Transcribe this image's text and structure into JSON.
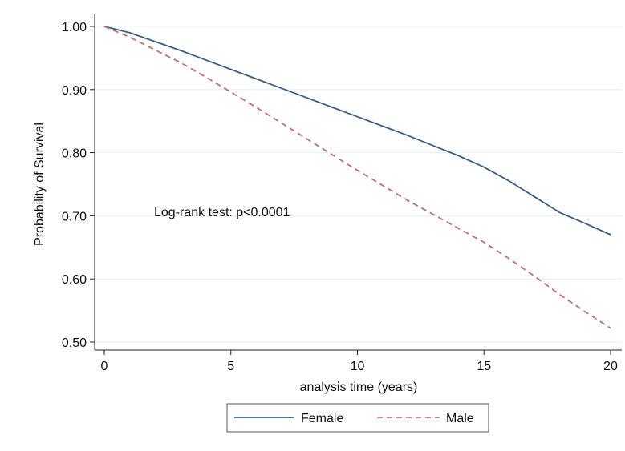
{
  "chart_data": {
    "type": "line",
    "title": "",
    "xlabel": "analysis time (years)",
    "ylabel": "Probability of Survival",
    "xlim": [
      0,
      20
    ],
    "ylim": [
      0.5,
      1.0
    ],
    "x_ticks": [
      0,
      5,
      10,
      15,
      20
    ],
    "x_tick_labels": [
      "0",
      "5",
      "10",
      "15",
      "20"
    ],
    "y_ticks": [
      0.5,
      0.6,
      0.7,
      0.8,
      0.9,
      1.0
    ],
    "y_tick_labels": [
      "0.50",
      "0.60",
      "0.70",
      "0.80",
      "0.90",
      "1.00"
    ],
    "grid": "horizontal",
    "legend_position": "bottom",
    "annotation": "Log-rank test: p<0.0001",
    "series": [
      {
        "name": "Female",
        "color": "#3a5f86",
        "style": "solid",
        "x": [
          0,
          1,
          2,
          3,
          4,
          5,
          6,
          7,
          8,
          9,
          10,
          11,
          12,
          13,
          14,
          15,
          16,
          17,
          18,
          19,
          20
        ],
        "y": [
          1.0,
          0.99,
          0.976,
          0.962,
          0.947,
          0.932,
          0.917,
          0.902,
          0.887,
          0.872,
          0.857,
          0.842,
          0.827,
          0.811,
          0.795,
          0.777,
          0.755,
          0.73,
          0.705,
          0.688,
          0.67
        ]
      },
      {
        "name": "Male",
        "color": "#c0706e",
        "style": "dashed",
        "x": [
          0,
          1,
          2,
          3,
          4,
          5,
          6,
          7,
          8,
          9,
          10,
          11,
          12,
          13,
          14,
          15,
          16,
          17,
          18,
          19,
          20
        ],
        "y": [
          1.0,
          0.983,
          0.963,
          0.943,
          0.92,
          0.896,
          0.872,
          0.847,
          0.822,
          0.797,
          0.772,
          0.748,
          0.724,
          0.702,
          0.68,
          0.658,
          0.632,
          0.604,
          0.575,
          0.548,
          0.522
        ]
      }
    ]
  }
}
